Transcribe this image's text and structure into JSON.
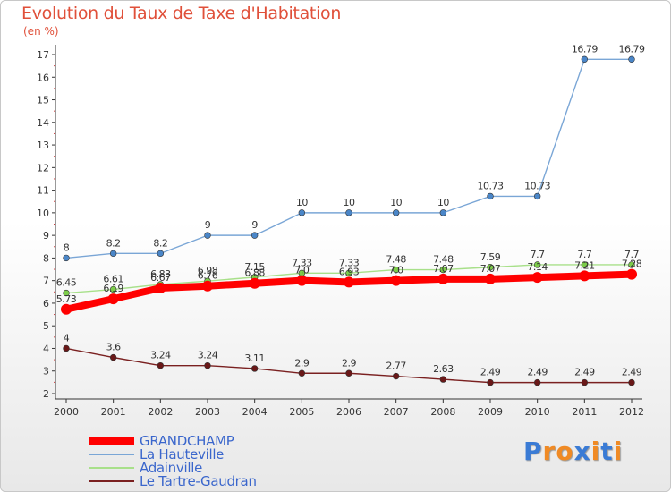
{
  "header": {
    "title": "Evolution du Taux de Taxe d'Habitation",
    "unit": "(en %)"
  },
  "logo": {
    "text": "Proxiti",
    "colors": [
      "#3a7bd5",
      "#f08a24",
      "#f08a24",
      "#3a7bd5",
      "#f08a24",
      "#3a7bd5",
      "#f08a24"
    ]
  },
  "chart_data": {
    "type": "line",
    "title": "Evolution du Taux de Taxe d'Habitation",
    "ylabel": "(en %)",
    "xlabel": "",
    "ylim": [
      2,
      17
    ],
    "yticks": [
      2,
      3,
      4,
      5,
      6,
      7,
      8,
      9,
      10,
      11,
      12,
      13,
      14,
      15,
      16,
      17
    ],
    "x": [
      "2000",
      "2001",
      "2002",
      "2003",
      "2004",
      "2005",
      "2006",
      "2007",
      "2008",
      "2009",
      "2010",
      "2011",
      "2012"
    ],
    "grid": false,
    "legend_position": "bottom-left",
    "series": [
      {
        "name": "La Hauteville",
        "color": "#7aa6d6",
        "marker": "#4a86c8",
        "values": [
          8,
          8.2,
          8.2,
          9,
          9,
          10,
          10,
          10,
          10,
          10.73,
          10.73,
          16.79,
          16.79
        ],
        "labels": [
          "8",
          "8.2",
          "8.2",
          "9",
          "9",
          "10",
          "10",
          "10",
          "10",
          "10.73",
          "10.73",
          "16.79",
          "16.79"
        ]
      },
      {
        "name": "Adainville",
        "color": "#a8e08a",
        "marker": "#7ccc4a",
        "values": [
          6.45,
          6.61,
          6.83,
          6.98,
          7.15,
          7.33,
          7.33,
          7.48,
          7.48,
          7.59,
          7.7,
          7.7,
          7.7
        ],
        "labels": [
          "6.45",
          "6.61",
          "6.83",
          "6.98",
          "7.15",
          "7.33",
          "7.33",
          "7.48",
          "7.48",
          "7.59",
          "7.7",
          "7.7",
          "7.7"
        ]
      },
      {
        "name": "GRANDCHAMP",
        "color": "#ff0000",
        "marker": "#ff0000",
        "values": [
          5.73,
          6.19,
          6.67,
          6.76,
          6.88,
          7.0,
          6.93,
          7.0,
          7.07,
          7.07,
          7.14,
          7.21,
          7.28
        ],
        "labels": [
          "5.73",
          "6.19",
          "6.67",
          "6.76",
          "6.88",
          "7.0",
          "6.93",
          "7.0",
          "7.07",
          "7.07",
          "7.14",
          "7.21",
          "7.28"
        ]
      },
      {
        "name": "Le Tartre-Gaudran",
        "color": "#7a2020",
        "marker": "#6a1818",
        "values": [
          4,
          3.6,
          3.24,
          3.24,
          3.11,
          2.9,
          2.9,
          2.77,
          2.63,
          2.49,
          2.49,
          2.49,
          2.49
        ],
        "labels": [
          "4",
          "3.6",
          "3.24",
          "3.24",
          "3.11",
          "2.9",
          "2.9",
          "2.77",
          "2.63",
          "2.49",
          "2.49",
          "2.49",
          "2.49"
        ]
      }
    ],
    "legend": [
      {
        "name": "GRANDCHAMP",
        "color": "#ff0000",
        "thick": true
      },
      {
        "name": "La Hauteville",
        "color": "#7aa6d6",
        "thick": false
      },
      {
        "name": "Adainville",
        "color": "#a8e08a",
        "thick": false
      },
      {
        "name": "Le Tartre-Gaudran",
        "color": "#7a2020",
        "thick": false
      }
    ]
  }
}
